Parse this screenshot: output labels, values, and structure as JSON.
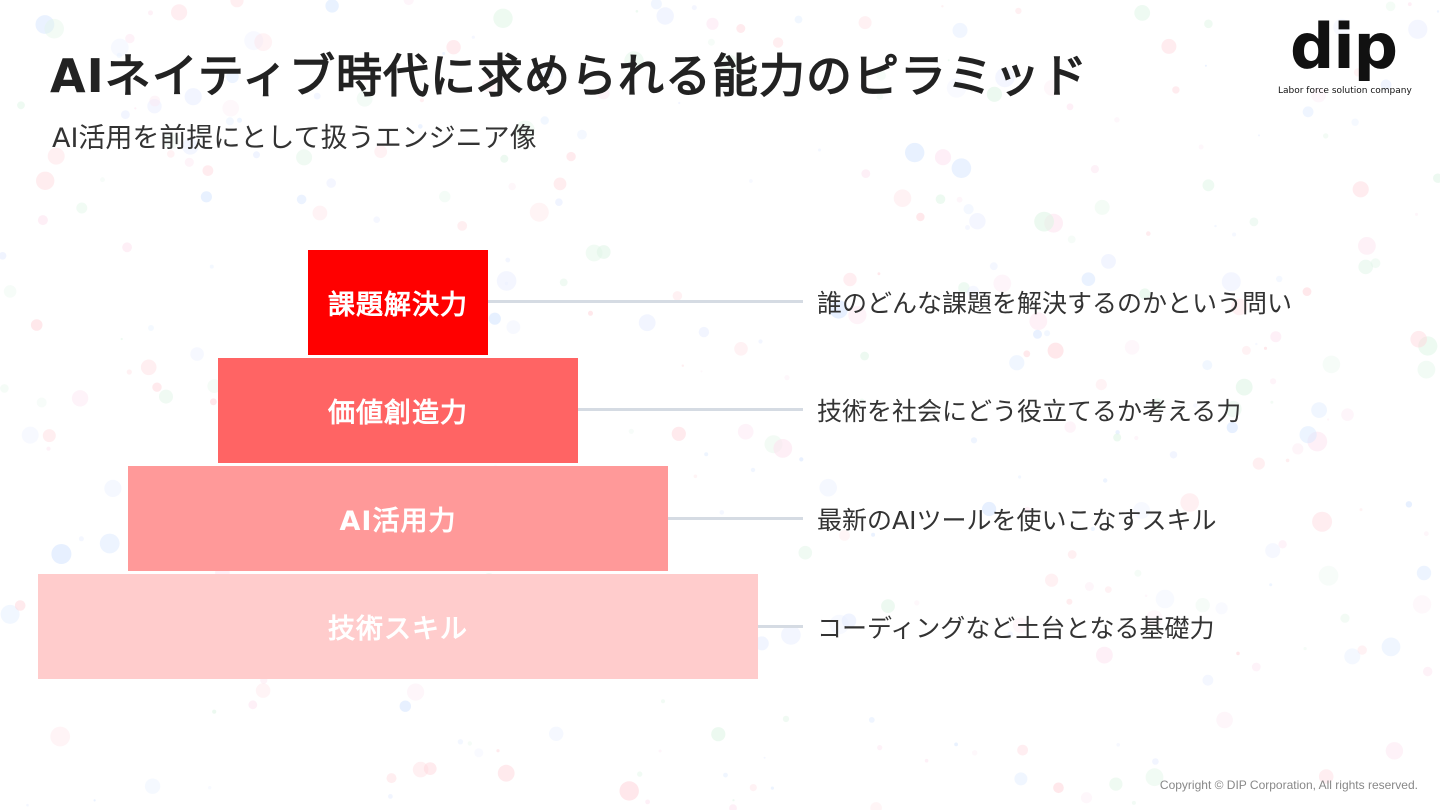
{
  "slide": {
    "title": "AIネイティブ時代に求められる能力のピラミッド",
    "subtitle": "AI活用を前提にとして扱うエンジニア像"
  },
  "logo": {
    "word": "dip",
    "tagline": "Labor force solution company"
  },
  "pyramid": {
    "levels": [
      {
        "label": "課題解決力",
        "description": "誰のどんな課題を解決するのかという問い",
        "color": "#ff0000"
      },
      {
        "label": "価値創造力",
        "description": "技術を社会にどう役立てるか考える力",
        "color": "#ff6464"
      },
      {
        "label": "AI活用力",
        "description": "最新のAIツールを使いこなすスキル",
        "color": "#ff9999"
      },
      {
        "label": "技術スキル",
        "description": "コーディングなど土台となる基礎力",
        "color": "#ffcccc"
      }
    ],
    "connector_color": "#d5dbe3"
  },
  "footer": {
    "copyright": "Copyright © DIP Corporation, All rights reserved."
  }
}
